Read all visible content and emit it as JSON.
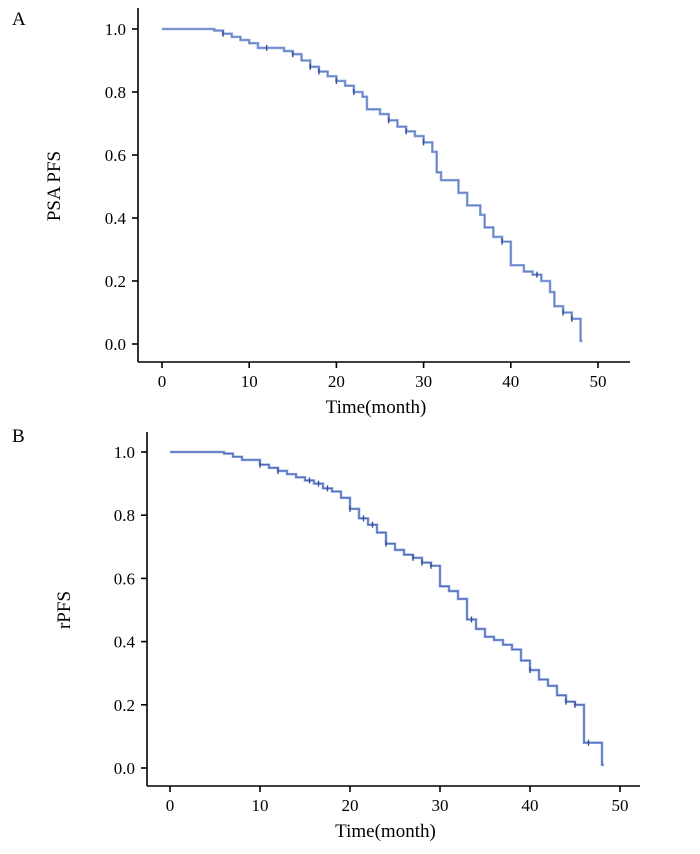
{
  "chart_data": [
    {
      "type": "line",
      "panel_label": "A",
      "title": "",
      "xlabel": "Time(month)",
      "ylabel": "PSA PFS",
      "xlim": [
        0,
        50
      ],
      "ylim": [
        0,
        1.0
      ],
      "xticks": [
        "0",
        "10",
        "20",
        "30",
        "40",
        "50"
      ],
      "yticks": [
        "0.0",
        "0.2",
        "0.4",
        "0.6",
        "0.8",
        "1.0"
      ],
      "grid": false,
      "series": [
        {
          "name": "Kaplan-Meier step curve",
          "color": "#6f7fc4",
          "steps": [
            [
              0,
              1.0
            ],
            [
              6,
              0.995
            ],
            [
              7,
              0.985
            ],
            [
              8,
              0.975
            ],
            [
              9,
              0.965
            ],
            [
              10,
              0.955
            ],
            [
              11,
              0.94
            ],
            [
              14,
              0.93
            ],
            [
              15,
              0.92
            ],
            [
              16,
              0.9
            ],
            [
              17,
              0.88
            ],
            [
              18,
              0.865
            ],
            [
              19,
              0.85
            ],
            [
              20,
              0.835
            ],
            [
              21,
              0.82
            ],
            [
              22,
              0.8
            ],
            [
              23,
              0.785
            ],
            [
              23.5,
              0.745
            ],
            [
              25,
              0.73
            ],
            [
              26,
              0.71
            ],
            [
              27,
              0.69
            ],
            [
              28,
              0.675
            ],
            [
              29,
              0.66
            ],
            [
              30,
              0.64
            ],
            [
              31,
              0.61
            ],
            [
              31.5,
              0.545
            ],
            [
              32,
              0.52
            ],
            [
              34,
              0.48
            ],
            [
              35,
              0.44
            ],
            [
              36.5,
              0.41
            ],
            [
              37,
              0.37
            ],
            [
              38,
              0.34
            ],
            [
              39,
              0.325
            ],
            [
              40,
              0.25
            ],
            [
              41.5,
              0.23
            ],
            [
              42.5,
              0.22
            ],
            [
              43.5,
              0.2
            ],
            [
              44.5,
              0.165
            ],
            [
              45,
              0.12
            ],
            [
              46,
              0.1
            ],
            [
              47,
              0.08
            ],
            [
              48,
              0.01
            ]
          ],
          "end": 48.2,
          "censored": [
            7,
            12,
            15,
            17,
            18,
            20,
            22,
            26,
            28,
            30,
            39,
            43,
            46,
            47
          ]
        }
      ]
    },
    {
      "type": "line",
      "panel_label": "B",
      "title": "",
      "xlabel": "Time(month)",
      "ylabel": "rPFS",
      "xlim": [
        0,
        50
      ],
      "ylim": [
        0,
        1.0
      ],
      "xticks": [
        "0",
        "10",
        "20",
        "30",
        "40",
        "50"
      ],
      "yticks": [
        "0.0",
        "0.2",
        "0.4",
        "0.6",
        "0.8",
        "1.0"
      ],
      "grid": false,
      "series": [
        {
          "name": "Kaplan-Meier step curve",
          "color": "#5a6ab8",
          "steps": [
            [
              0,
              1.0
            ],
            [
              6,
              0.995
            ],
            [
              7,
              0.985
            ],
            [
              8,
              0.975
            ],
            [
              10,
              0.96
            ],
            [
              11,
              0.95
            ],
            [
              12,
              0.94
            ],
            [
              13,
              0.93
            ],
            [
              14,
              0.92
            ],
            [
              15,
              0.91
            ],
            [
              16,
              0.9
            ],
            [
              17,
              0.885
            ],
            [
              18,
              0.875
            ],
            [
              19,
              0.855
            ],
            [
              20,
              0.82
            ],
            [
              21,
              0.79
            ],
            [
              22,
              0.77
            ],
            [
              23,
              0.745
            ],
            [
              24,
              0.71
            ],
            [
              25,
              0.69
            ],
            [
              26,
              0.675
            ],
            [
              27,
              0.665
            ],
            [
              28,
              0.65
            ],
            [
              29,
              0.64
            ],
            [
              30,
              0.575
            ],
            [
              31,
              0.56
            ],
            [
              32,
              0.535
            ],
            [
              33,
              0.47
            ],
            [
              34,
              0.44
            ],
            [
              35,
              0.415
            ],
            [
              36,
              0.405
            ],
            [
              37,
              0.39
            ],
            [
              38,
              0.375
            ],
            [
              39,
              0.34
            ],
            [
              40,
              0.31
            ],
            [
              41,
              0.28
            ],
            [
              42,
              0.26
            ],
            [
              43,
              0.23
            ],
            [
              44,
              0.21
            ],
            [
              45,
              0.2
            ],
            [
              46,
              0.08
            ],
            [
              47,
              0.08
            ],
            [
              48,
              0.01
            ]
          ],
          "end": 48.2,
          "censored": [
            10,
            12,
            15.5,
            16.5,
            17.5,
            20,
            21.5,
            22.5,
            24,
            27,
            28,
            29,
            33.5,
            40,
            44,
            45,
            46.5
          ]
        }
      ]
    }
  ]
}
